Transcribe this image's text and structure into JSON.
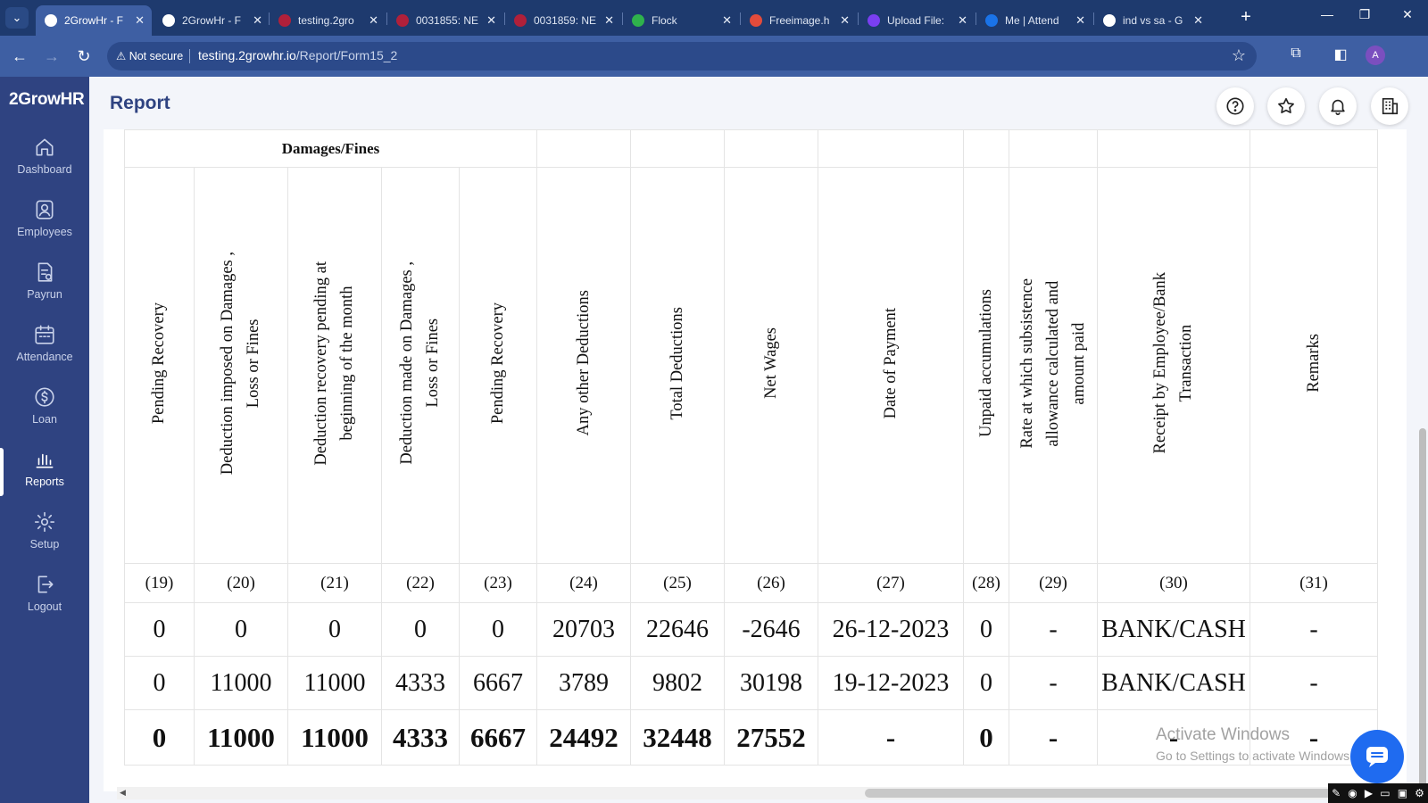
{
  "browser": {
    "tabs": [
      {
        "title": "2GrowHr - F",
        "active": true,
        "favicon_color": "#ffffff"
      },
      {
        "title": "2GrowHr - F",
        "active": false,
        "favicon_color": "#ffffff"
      },
      {
        "title": "testing.2gro",
        "active": false,
        "favicon_color": "#b0203a"
      },
      {
        "title": "0031855: NE",
        "active": false,
        "favicon_color": "#b0203a"
      },
      {
        "title": "0031859: NE",
        "active": false,
        "favicon_color": "#b0203a"
      },
      {
        "title": "Flock",
        "active": false,
        "favicon_color": "#2fb24c"
      },
      {
        "title": "Freeimage.h",
        "active": false,
        "favicon_color": "#e34b3b"
      },
      {
        "title": "Upload File:",
        "active": false,
        "favicon_color": "#7a3ff2"
      },
      {
        "title": "Me | Attend",
        "active": false,
        "favicon_color": "#1a73e8"
      },
      {
        "title": "ind vs sa - G",
        "active": false,
        "favicon_color": "#ffffff"
      }
    ],
    "tab_close_glyph": "✕",
    "new_tab_glyph": "+",
    "security_label": "Not secure",
    "url_host": "testing.2growhr.io",
    "url_path": "/Report/Form15_2",
    "profile_initial": "A"
  },
  "app": {
    "logo_text": "2GrowHR",
    "nav": [
      {
        "label": "Dashboard",
        "icon": "home-icon",
        "active": false
      },
      {
        "label": "Employees",
        "icon": "user-icon",
        "active": false
      },
      {
        "label": "Payrun",
        "icon": "payrun-icon",
        "active": false
      },
      {
        "label": "Attendance",
        "icon": "calendar-icon",
        "active": false
      },
      {
        "label": "Loan",
        "icon": "loan-icon",
        "active": false
      },
      {
        "label": "Reports",
        "icon": "bar-chart-icon",
        "active": true
      },
      {
        "label": "Setup",
        "icon": "gear-icon",
        "active": false
      },
      {
        "label": "Logout",
        "icon": "logout-icon",
        "active": false
      }
    ],
    "page_title": "Report",
    "header_icons": [
      "help-icon",
      "star-icon",
      "bell-icon",
      "building-icon"
    ]
  },
  "report": {
    "group_header": "Damages/Fines",
    "columns": [
      {
        "header": "Pending Recovery",
        "num": "(19)"
      },
      {
        "header": "Deduction imposed on Damages ,\nLoss or Fines",
        "num": "(20)"
      },
      {
        "header": "Deduction recovery pending at\nbeginning of the month",
        "num": "(21)"
      },
      {
        "header": "Deduction made on Damages ,\nLoss or Fines",
        "num": "(22)"
      },
      {
        "header": "Pending Recovery",
        "num": "(23)"
      },
      {
        "header": "Any other Deductions",
        "num": "(24)"
      },
      {
        "header": "Total Deductions",
        "num": "(25)"
      },
      {
        "header": "Net Wages",
        "num": "(26)"
      },
      {
        "header": "Date of Payment",
        "num": "(27)"
      },
      {
        "header": "Unpaid accumulations",
        "num": "(28)"
      },
      {
        "header": "Rate at which subsistence\nallowance calculated and\namount paid",
        "num": "(29)"
      },
      {
        "header": "Receipt by Employee/Bank\nTransaction",
        "num": "(30)"
      },
      {
        "header": "Remarks",
        "num": "(31)"
      }
    ],
    "rows": [
      [
        "0",
        "0",
        "0",
        "0",
        "0",
        "20703",
        "22646",
        "-2646",
        "26-12-2023",
        "0",
        "-",
        "BANK/CASH",
        "-"
      ],
      [
        "0",
        "11000",
        "11000",
        "4333",
        "6667",
        "3789",
        "9802",
        "30198",
        "19-12-2023",
        "0",
        "-",
        "BANK/CASH",
        "-"
      ]
    ],
    "totals": [
      "0",
      "11000",
      "11000",
      "4333",
      "6667",
      "24492",
      "32448",
      "27552",
      "-",
      "0",
      "-",
      "-",
      "-"
    ]
  },
  "overlay": {
    "watermark_line1": "Activate Windows",
    "watermark_line2": "Go to Settings to activate Windows."
  }
}
